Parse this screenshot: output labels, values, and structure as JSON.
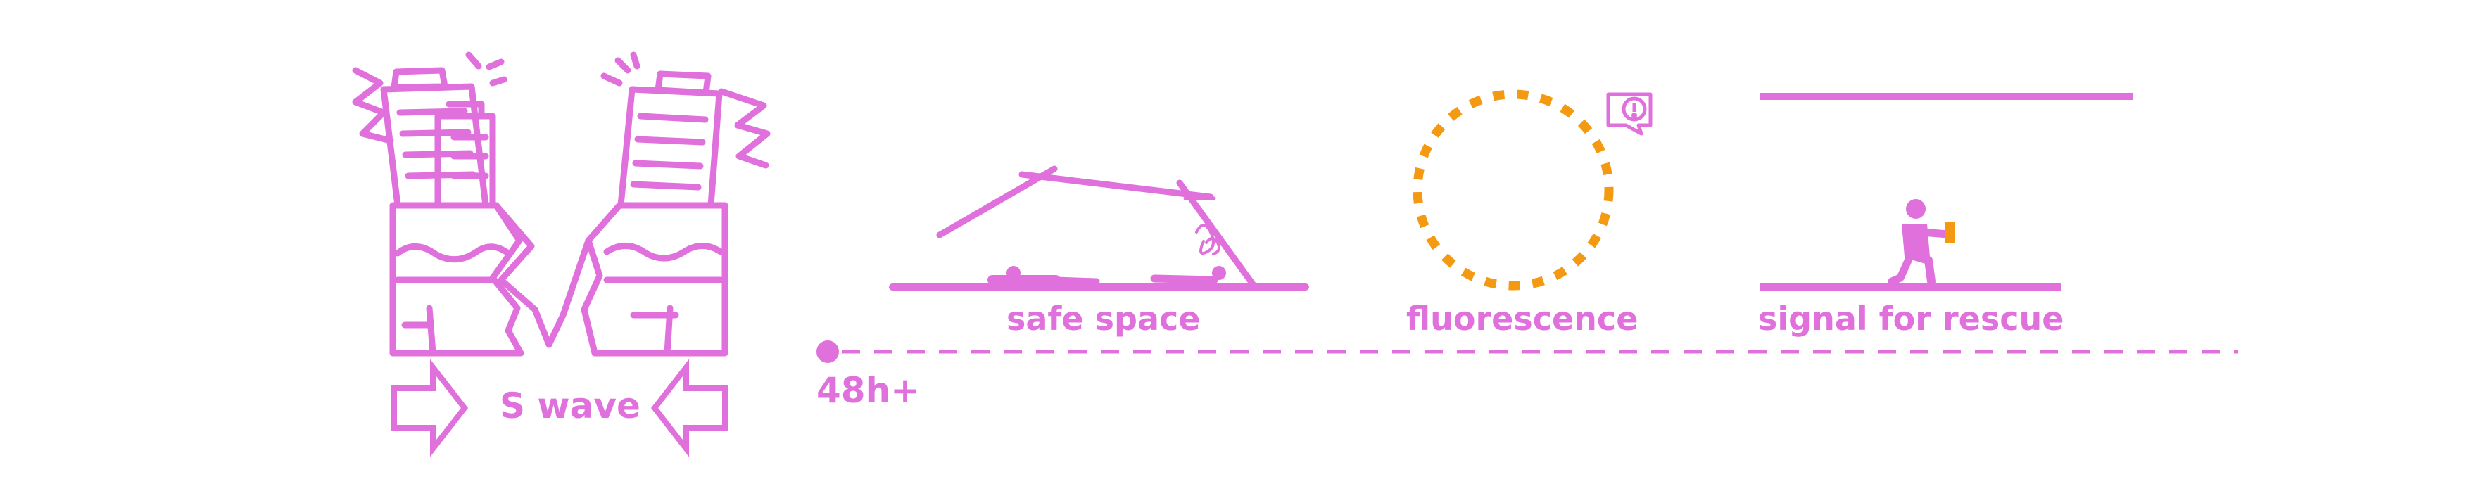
{
  "labels": {
    "s_wave": "S wave",
    "timeline_start": "48h+",
    "safe_space": "safe space",
    "fluorescence": "fluorescence",
    "signal_for_rescue": "signal for rescue"
  },
  "icons": {
    "collapsing_buildings": "collapsing-buildings-icon",
    "arrow_right": "arrow-right-icon",
    "arrow_left": "arrow-left-icon",
    "timeline_start_dot": "timeline-dot-icon",
    "lean_to_shelter": "lean-to-shelter-icon",
    "fluorescent_ring": "fluorescent-ring-icon",
    "alert_bubble": "alert-bubble-icon",
    "kneeling_person_with_light": "kneeling-person-icon"
  },
  "colors": {
    "primary": "#e070dc",
    "accent": "#f39a12",
    "background": "#ffffff"
  }
}
